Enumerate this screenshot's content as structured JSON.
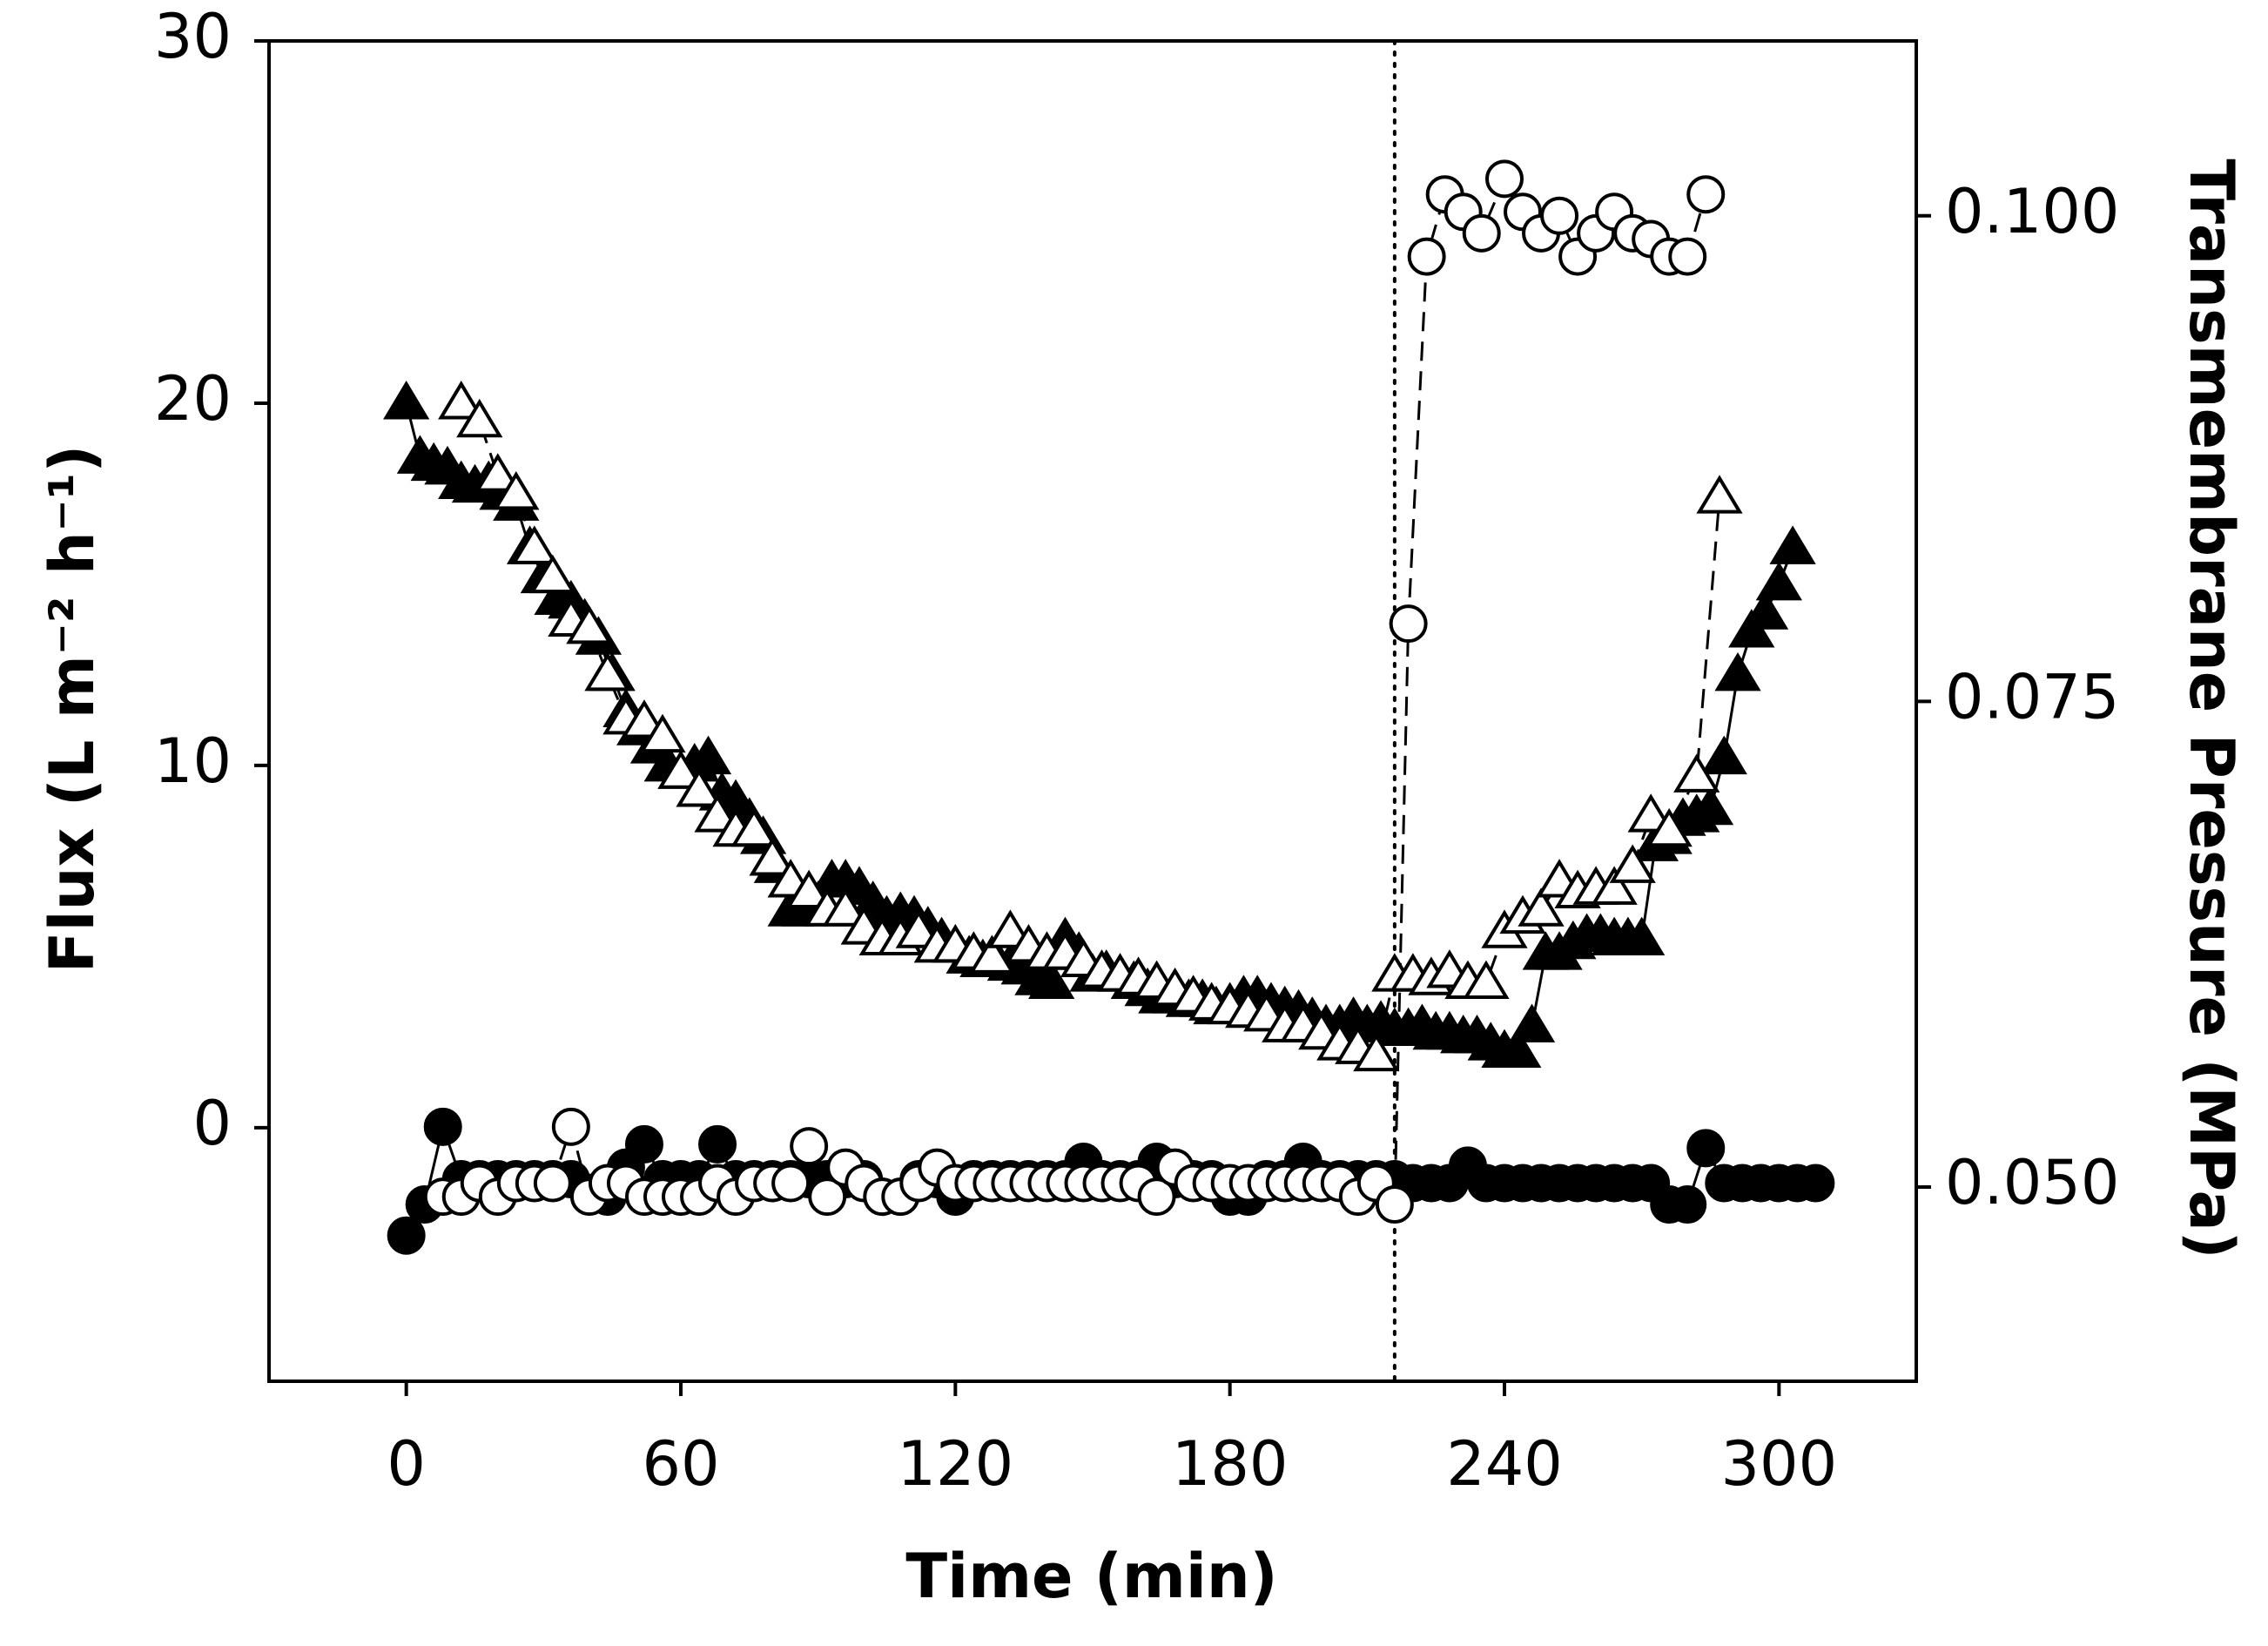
{
  "chart_data": {
    "type": "scatter",
    "x_label": "Time (min)",
    "y_label": "Flux (L m⁻² h⁻¹)",
    "y2_label": "Transmembrane Pressure (MPa)",
    "xlim": [
      -30,
      330
    ],
    "xticks": [
      0,
      60,
      120,
      180,
      240,
      300
    ],
    "ylim": [
      -7,
      30
    ],
    "yticks": [
      0,
      10,
      20,
      30
    ],
    "y2lim": [
      0.04,
      0.109
    ],
    "y2ticks": [
      {
        "value": 0.05,
        "label": "0.050"
      },
      0.075,
      {
        "value": 0.1,
        "label": "0.100"
      }
    ],
    "reference_line_x": 216,
    "series": [
      {
        "marker": "triangle",
        "color": "#000000",
        "marker_fill": "#000000",
        "line_style": "solid",
        "axis": "y",
        "x": [
          0,
          3,
          6,
          9,
          12,
          15,
          18,
          21,
          24,
          27,
          30,
          33,
          36,
          39,
          42,
          45,
          48,
          51,
          54,
          57,
          60,
          63,
          66,
          69,
          72,
          75,
          78,
          81,
          84,
          87,
          90,
          93,
          96,
          99,
          102,
          105,
          108,
          111,
          114,
          117,
          120,
          123,
          126,
          129,
          132,
          135,
          138,
          141,
          144,
          147,
          150,
          153,
          156,
          159,
          162,
          165,
          168,
          171,
          174,
          177,
          180,
          183,
          186,
          189,
          192,
          195,
          198,
          201,
          204,
          207,
          210,
          213,
          216,
          219,
          222,
          225,
          228,
          231,
          234,
          237,
          240,
          243,
          246,
          249,
          252,
          255,
          258,
          261,
          264,
          267,
          270,
          273,
          276,
          279,
          282,
          285,
          288,
          291,
          294,
          297,
          300,
          303
        ],
        "values": [
          20,
          18.5,
          18.3,
          18.2,
          17.8,
          17.7,
          17.8,
          17.5,
          17.2,
          16,
          15.2,
          14.6,
          14.5,
          14,
          13.5,
          12.5,
          11.5,
          11,
          10.5,
          10,
          9.8,
          10,
          10.2,
          9.2,
          9,
          8.5,
          8,
          7.2,
          6,
          6,
          6.2,
          6.8,
          6.8,
          6.6,
          6.2,
          5.8,
          5.9,
          5.8,
          5.5,
          5.2,
          5,
          4.7,
          4.6,
          4.6,
          4.5,
          4.4,
          4.1,
          4,
          5.2,
          4.8,
          4.2,
          4.3,
          4.2,
          4,
          3.8,
          3.6,
          3.6,
          3.5,
          3.5,
          3.3,
          3.4,
          3.6,
          3.6,
          3.4,
          3.3,
          3.2,
          3,
          2.8,
          2.8,
          3,
          2.8,
          2.9,
          2.7,
          2.7,
          2.8,
          2.6,
          2.6,
          2.5,
          2.5,
          2.3,
          2.1,
          2.1,
          2.8,
          4.8,
          4.8,
          5.1,
          5.3,
          5.3,
          5.2,
          5.2,
          5.2,
          7.8,
          8,
          8.5,
          8.6,
          8.8,
          10.2,
          12.5,
          13.7,
          14.2,
          15,
          16
        ]
      },
      {
        "marker": "triangle",
        "color": "#000000",
        "marker_fill": "#ffffff",
        "line_style": "dashed",
        "axis": "y",
        "x": [
          12,
          16,
          20,
          24,
          28,
          32,
          36,
          40,
          44,
          48,
          52,
          56,
          60,
          64,
          68,
          72,
          76,
          80,
          84,
          88,
          92,
          96,
          100,
          104,
          108,
          112,
          116,
          120,
          124,
          128,
          132,
          136,
          140,
          144,
          148,
          152,
          156,
          160,
          164,
          168,
          172,
          176,
          180,
          184,
          188,
          192,
          196,
          200,
          204,
          208,
          212,
          216,
          220,
          224,
          228,
          232,
          236,
          240,
          244,
          248,
          252,
          256,
          260,
          264,
          268,
          272,
          276,
          282,
          287
        ],
        "values": [
          20,
          19.5,
          18,
          17.5,
          16,
          15.2,
          14,
          13.8,
          12.5,
          11.3,
          11.2,
          10.8,
          9.8,
          9.3,
          8.6,
          8.2,
          8.2,
          7.4,
          6.8,
          6.5,
          6,
          6,
          5.5,
          5.2,
          5.2,
          5.4,
          5,
          5,
          4.8,
          4.7,
          5.4,
          5,
          4.8,
          4.8,
          4.6,
          4.3,
          4.2,
          4.1,
          4,
          3.8,
          3.6,
          3.4,
          3.3,
          3.2,
          3.1,
          2.8,
          2.8,
          2.6,
          2.3,
          2.2,
          2.0,
          4.2,
          4.2,
          4.1,
          4.3,
          4,
          4,
          5.4,
          5.8,
          6,
          6.8,
          6.5,
          6.6,
          6.6,
          7.2,
          8.6,
          8.2,
          9.7,
          17.4
        ]
      },
      {
        "marker": "circle",
        "color": "#000000",
        "marker_fill": "#000000",
        "line_style": "solid",
        "axis": "y2",
        "x": [
          0,
          4,
          8,
          12,
          16,
          20,
          24,
          28,
          32,
          36,
          40,
          44,
          48,
          52,
          56,
          60,
          64,
          68,
          72,
          76,
          80,
          84,
          88,
          92,
          96,
          100,
          104,
          108,
          112,
          116,
          120,
          124,
          128,
          132,
          136,
          140,
          144,
          148,
          152,
          156,
          160,
          164,
          168,
          172,
          176,
          180,
          184,
          188,
          192,
          196,
          200,
          204,
          208,
          212,
          216,
          220,
          224,
          228,
          232,
          236,
          240,
          244,
          248,
          252,
          256,
          260,
          264,
          268,
          272,
          276,
          280,
          284,
          288,
          292,
          296,
          300,
          304,
          308
        ],
        "values": [
          0.0475,
          0.0491,
          0.0531,
          0.0504,
          0.0504,
          0.0504,
          0.0504,
          0.0504,
          0.0504,
          0.0504,
          0.0497,
          0.0495,
          0.051,
          0.0522,
          0.0504,
          0.0504,
          0.0504,
          0.0522,
          0.0504,
          0.0504,
          0.0504,
          0.0504,
          0.0504,
          0.0504,
          0.0504,
          0.0504,
          0.0495,
          0.0495,
          0.0504,
          0.0504,
          0.0495,
          0.0504,
          0.0504,
          0.0504,
          0.0504,
          0.0504,
          0.0504,
          0.0513,
          0.0504,
          0.0504,
          0.0504,
          0.0513,
          0.0504,
          0.0504,
          0.0504,
          0.0495,
          0.0495,
          0.0504,
          0.0504,
          0.0513,
          0.0504,
          0.0504,
          0.0504,
          0.0504,
          0.0504,
          0.0502,
          0.0502,
          0.0502,
          0.0511,
          0.0502,
          0.0502,
          0.0502,
          0.0502,
          0.0502,
          0.0502,
          0.0502,
          0.0502,
          0.0502,
          0.0502,
          0.0491,
          0.0491,
          0.052,
          0.0502,
          0.0502,
          0.0502,
          0.0502,
          0.0502,
          0.0502
        ]
      },
      {
        "marker": "circle",
        "color": "#000000",
        "marker_fill": "#ffffff",
        "line_style": "dashed",
        "axis": "y2",
        "x": [
          8,
          12,
          16,
          20,
          24,
          28,
          32,
          36,
          40,
          44,
          48,
          52,
          56,
          60,
          64,
          68,
          72,
          76,
          80,
          84,
          88,
          92,
          96,
          100,
          104,
          108,
          112,
          116,
          120,
          124,
          128,
          132,
          136,
          140,
          144,
          148,
          152,
          156,
          160,
          164,
          168,
          172,
          176,
          180,
          184,
          188,
          192,
          196,
          200,
          204,
          208,
          212,
          216,
          219,
          223,
          227,
          231,
          235,
          240,
          244,
          248,
          252,
          256,
          260,
          264,
          268,
          272,
          276,
          280,
          284
        ],
        "values": [
          0.0495,
          0.0495,
          0.0502,
          0.0495,
          0.0502,
          0.0502,
          0.0502,
          0.0531,
          0.0495,
          0.0502,
          0.0502,
          0.0495,
          0.0495,
          0.0495,
          0.0495,
          0.0502,
          0.0495,
          0.0502,
          0.0502,
          0.0502,
          0.0521,
          0.0495,
          0.051,
          0.0502,
          0.0495,
          0.0495,
          0.0502,
          0.051,
          0.0502,
          0.0502,
          0.0502,
          0.0502,
          0.0502,
          0.0502,
          0.0502,
          0.0502,
          0.0502,
          0.0502,
          0.0502,
          0.0495,
          0.051,
          0.0502,
          0.0502,
          0.0502,
          0.0502,
          0.0502,
          0.0502,
          0.0502,
          0.0502,
          0.0502,
          0.0495,
          0.0502,
          0.0491,
          0.079,
          0.0979,
          0.1011,
          0.1002,
          0.0991,
          0.1019,
          0.1002,
          0.0991,
          0.1,
          0.0979,
          0.0991,
          0.1002,
          0.0991,
          0.0988,
          0.0979,
          0.0979,
          0.1011
        ]
      }
    ]
  }
}
